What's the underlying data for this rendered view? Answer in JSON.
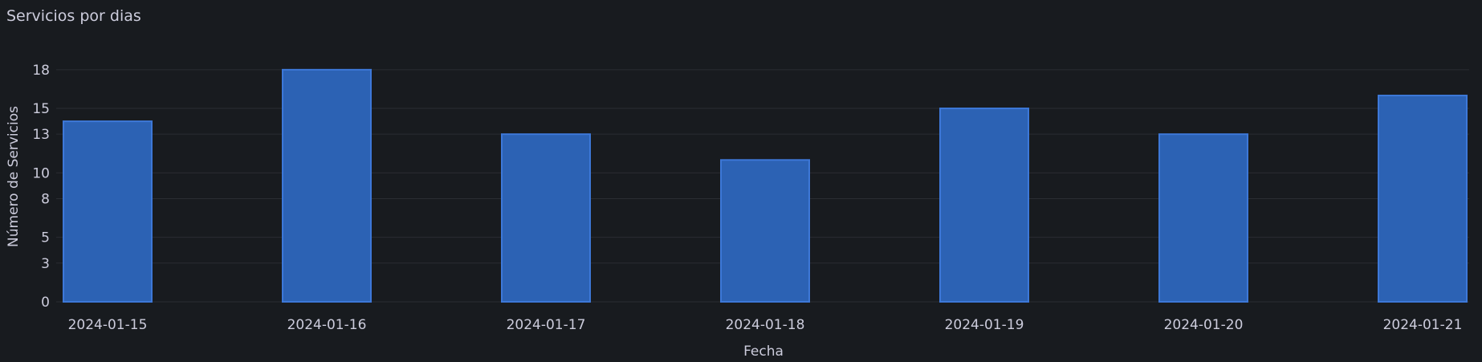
{
  "panel": {
    "title": "Servicios por dias"
  },
  "colors": {
    "background": "#181b1f",
    "bar_fill": "#2c62b4",
    "bar_stroke": "#3d78d8",
    "grid": "#2a2d33",
    "text": "#ccccdc"
  },
  "chart_data": {
    "type": "bar",
    "title": "Servicios por dias",
    "xlabel": "Fecha",
    "ylabel": "Número de Servicios",
    "categories": [
      "2024-01-15",
      "2024-01-16",
      "2024-01-17",
      "2024-01-18",
      "2024-01-19",
      "2024-01-20",
      "2024-01-21"
    ],
    "values": [
      14,
      18,
      13,
      11,
      15,
      13,
      16
    ],
    "ylim": [
      0,
      18
    ],
    "yticks": [
      0,
      3,
      5,
      8,
      10,
      13,
      15,
      18
    ],
    "grid": true,
    "legend": "none"
  }
}
